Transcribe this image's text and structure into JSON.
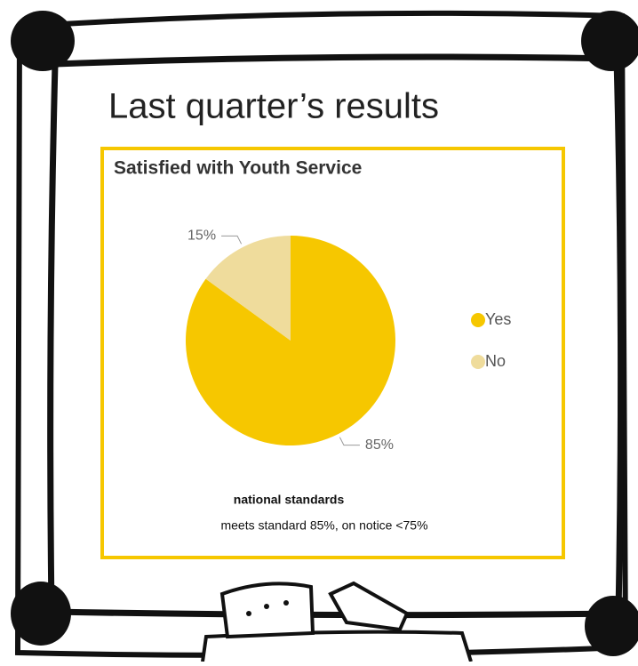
{
  "heading": "Last quarter’s results",
  "chart_data": {
    "type": "pie",
    "title": "Satisfied with Youth Service",
    "categories": [
      "Yes",
      "No"
    ],
    "values": [
      85,
      15
    ],
    "value_labels": [
      "85%",
      "15%"
    ],
    "colors": [
      "#f6c700",
      "#efdc9c"
    ],
    "legend": "right",
    "annotations": [
      "national standards",
      "meets standard 85%, on notice <75%"
    ]
  }
}
